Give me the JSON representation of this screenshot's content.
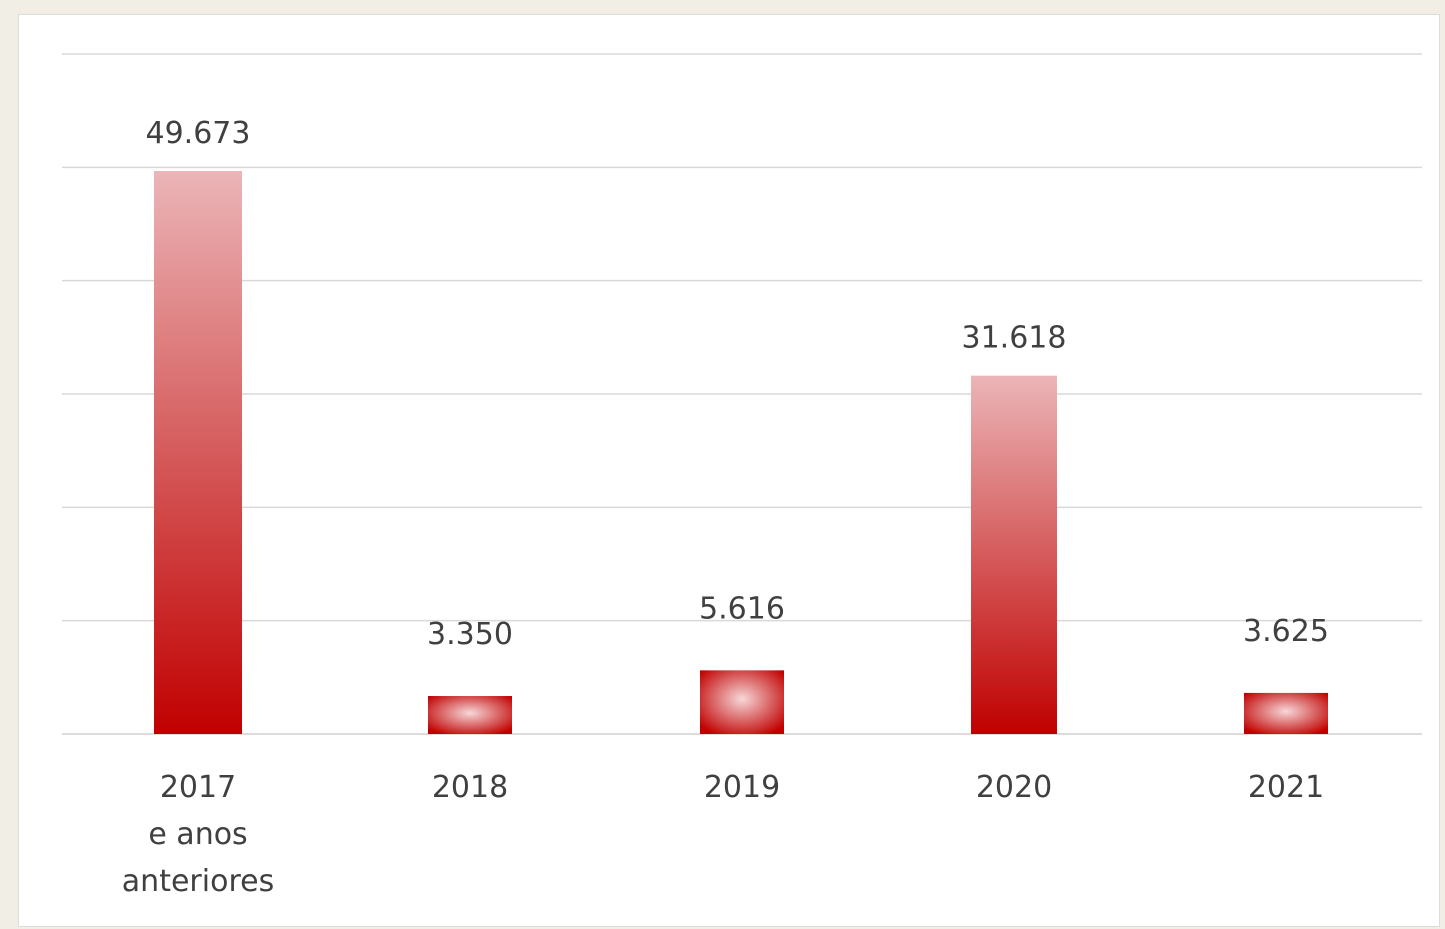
{
  "chart_data": {
    "type": "bar",
    "categories": [
      [
        "2017",
        "e anos",
        "anteriores"
      ],
      [
        "2018"
      ],
      [
        "2019"
      ],
      [
        "2020"
      ],
      [
        "2021"
      ]
    ],
    "values": [
      49673,
      3350,
      5616,
      31618,
      3625
    ],
    "data_labels": [
      "49.673",
      "3.350",
      "5.616",
      "31.618",
      "3.625"
    ],
    "title": "",
    "xlabel": "",
    "ylabel": "",
    "ylim": [
      0,
      60000
    ],
    "y_grid_step": 10000,
    "grid": true,
    "legend": "none",
    "colors": {
      "bar_top": "#ebb5b7",
      "bar_bottom": "#c00000",
      "small_bar_center": "#f7d7d8",
      "small_bar_edge": "#c00000"
    }
  }
}
